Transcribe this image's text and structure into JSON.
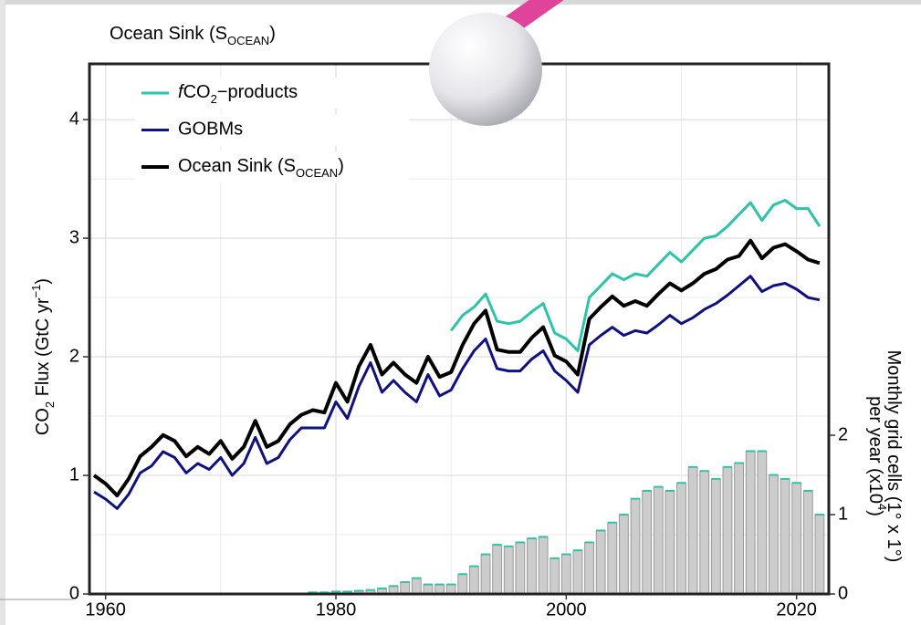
{
  "chart_data": {
    "type": "line",
    "title": [
      {
        "text": "Ocean Sink (S"
      },
      {
        "text": "OCEAN",
        "sub": true
      },
      {
        "text": ")"
      }
    ],
    "y_label": [
      {
        "text": "CO"
      },
      {
        "text": "2",
        "sub": true
      },
      {
        "text": " Flux (GtC yr"
      },
      {
        "text": "−1",
        "sup": true
      },
      {
        "text": ")"
      }
    ],
    "y2_label": [
      [
        {
          "text": "Monthly grid cells (1° x 1°)"
        }
      ],
      [
        {
          "text": "per year (x10"
        },
        {
          "text": "4",
          "sup": true
        },
        {
          "text": ")"
        }
      ]
    ],
    "x": [
      1959,
      1960,
      1961,
      1962,
      1963,
      1964,
      1965,
      1966,
      1967,
      1968,
      1969,
      1970,
      1971,
      1972,
      1973,
      1974,
      1975,
      1976,
      1977,
      1978,
      1979,
      1980,
      1981,
      1982,
      1983,
      1984,
      1985,
      1986,
      1987,
      1988,
      1989,
      1990,
      1991,
      1992,
      1993,
      1994,
      1995,
      1996,
      1997,
      1998,
      1999,
      2000,
      2001,
      2002,
      2003,
      2004,
      2005,
      2006,
      2007,
      2008,
      2009,
      2010,
      2011,
      2012,
      2013,
      2014,
      2015,
      2016,
      2017,
      2018,
      2019,
      2020,
      2021,
      2022
    ],
    "series": [
      {
        "name": [
          {
            "text": "f",
            "italic": true
          },
          {
            "text": "CO"
          },
          {
            "text": "2",
            "sub": true
          },
          {
            "text": "−products"
          }
        ],
        "color": "#2ec4a8",
        "width": 3,
        "values": [
          null,
          null,
          null,
          null,
          null,
          null,
          null,
          null,
          null,
          null,
          null,
          null,
          null,
          null,
          null,
          null,
          null,
          null,
          null,
          null,
          null,
          null,
          null,
          null,
          null,
          null,
          null,
          null,
          null,
          null,
          null,
          2.22,
          2.35,
          2.42,
          2.53,
          2.3,
          2.28,
          2.3,
          2.38,
          2.45,
          2.2,
          2.15,
          2.05,
          2.5,
          2.6,
          2.7,
          2.65,
          2.7,
          2.68,
          2.78,
          2.88,
          2.8,
          2.9,
          3.0,
          3.02,
          3.1,
          3.2,
          3.3,
          3.15,
          3.28,
          3.32,
          3.25,
          3.25,
          3.1
        ]
      },
      {
        "name": [
          {
            "text": "GOBMs"
          }
        ],
        "color": "#10107f",
        "width": 3,
        "values": [
          0.86,
          0.8,
          0.72,
          0.84,
          1.02,
          1.08,
          1.2,
          1.15,
          1.02,
          1.1,
          1.05,
          1.15,
          1.0,
          1.1,
          1.32,
          1.1,
          1.15,
          1.3,
          1.4,
          1.4,
          1.4,
          1.62,
          1.48,
          1.75,
          1.95,
          1.7,
          1.8,
          1.7,
          1.62,
          1.85,
          1.67,
          1.72,
          1.9,
          2.05,
          2.15,
          1.9,
          1.88,
          1.88,
          1.98,
          2.05,
          1.88,
          1.8,
          1.7,
          2.1,
          2.18,
          2.25,
          2.18,
          2.22,
          2.2,
          2.27,
          2.35,
          2.28,
          2.33,
          2.4,
          2.45,
          2.52,
          2.6,
          2.68,
          2.55,
          2.6,
          2.62,
          2.57,
          2.5,
          2.48
        ]
      },
      {
        "name": [
          {
            "text": "Ocean Sink (S"
          },
          {
            "text": "OCEAN",
            "sub": true
          },
          {
            "text": ")"
          }
        ],
        "color": "#000000",
        "width": 4,
        "values": [
          1.0,
          0.93,
          0.83,
          0.97,
          1.16,
          1.24,
          1.34,
          1.29,
          1.16,
          1.24,
          1.18,
          1.29,
          1.14,
          1.24,
          1.46,
          1.24,
          1.29,
          1.43,
          1.51,
          1.55,
          1.53,
          1.78,
          1.62,
          1.92,
          2.1,
          1.85,
          1.95,
          1.85,
          1.78,
          2.0,
          1.83,
          1.87,
          2.1,
          2.28,
          2.39,
          2.06,
          2.04,
          2.04,
          2.16,
          2.25,
          2.01,
          1.96,
          1.85,
          2.32,
          2.42,
          2.51,
          2.43,
          2.47,
          2.43,
          2.53,
          2.62,
          2.56,
          2.62,
          2.7,
          2.74,
          2.82,
          2.85,
          2.98,
          2.83,
          2.92,
          2.95,
          2.89,
          2.82,
          2.79
        ]
      }
    ],
    "bars": {
      "axis": "y2",
      "fill": "#cccccc",
      "edge": "#999999",
      "top_color": "#2ec4a8",
      "x": [
        1978,
        1979,
        1980,
        1981,
        1982,
        1983,
        1984,
        1985,
        1986,
        1987,
        1988,
        1989,
        1990,
        1991,
        1992,
        1993,
        1994,
        1995,
        1996,
        1997,
        1998,
        1999,
        2000,
        2001,
        2002,
        2003,
        2004,
        2005,
        2006,
        2007,
        2008,
        2009,
        2010,
        2011,
        2012,
        2013,
        2014,
        2015,
        2016,
        2017,
        2018,
        2019,
        2020,
        2021,
        2022
      ],
      "values": [
        0.02,
        0.02,
        0.03,
        0.03,
        0.04,
        0.05,
        0.07,
        0.1,
        0.15,
        0.2,
        0.12,
        0.12,
        0.12,
        0.25,
        0.35,
        0.5,
        0.62,
        0.6,
        0.65,
        0.7,
        0.72,
        0.45,
        0.5,
        0.55,
        0.65,
        0.8,
        0.9,
        1.0,
        1.2,
        1.3,
        1.35,
        1.3,
        1.4,
        1.6,
        1.55,
        1.45,
        1.6,
        1.65,
        1.8,
        1.8,
        1.5,
        1.45,
        1.4,
        1.3,
        1.0
      ]
    },
    "xlim": [
      1958.6,
      2022.8
    ],
    "xticks": [
      1960,
      1980,
      2000,
      2020
    ],
    "xgrid_minor": [
      1970,
      1990,
      2010
    ],
    "ylim": [
      0,
      4.47
    ],
    "yticks": [
      0,
      1,
      2,
      3,
      4
    ],
    "ygrid_minor": [
      0.5,
      1.5,
      2.5,
      3.5
    ],
    "y2lim": [
      0,
      6.68
    ],
    "y2ticks": [
      0,
      1,
      2
    ],
    "grid": true,
    "legend": "top-left"
  }
}
